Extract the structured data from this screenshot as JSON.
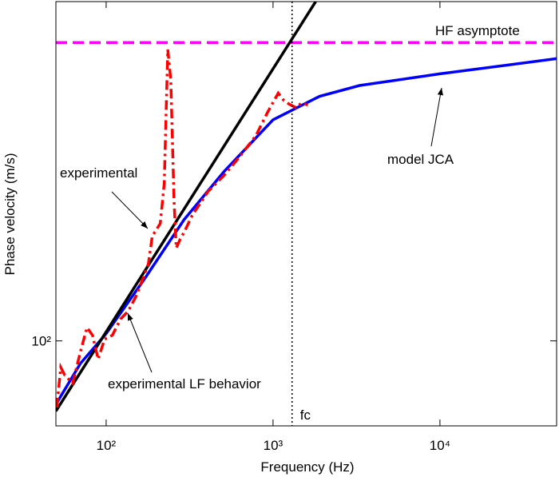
{
  "chart_data": {
    "type": "line",
    "xlabel": "Frequency (Hz)",
    "ylabel": "Phase velocity (m/s)",
    "xscale": "log",
    "yscale": "log",
    "xlim": [
      50,
      50000
    ],
    "ylim": [
      69,
      440
    ],
    "xticks": [
      {
        "value": 100,
        "label": "10²"
      },
      {
        "value": 1000,
        "label": "10³"
      },
      {
        "value": 10000,
        "label": "10⁴"
      }
    ],
    "yticks": [
      {
        "value": 100,
        "label": "10²"
      }
    ],
    "series": [
      {
        "name": "HF asymptote",
        "color": "#ff00ff",
        "style": "dash",
        "x": [
          50,
          50000
        ],
        "values": [
          368,
          368
        ]
      },
      {
        "name": "model JCA",
        "color": "#0000ff",
        "style": "solid",
        "x": [
          50.6,
          70.3,
          100,
          169,
          293,
          509,
          1000,
          1900,
          3300,
          10000,
          50000
        ],
        "values": [
          76.3,
          90.7,
          103.2,
          130.8,
          169.8,
          209.5,
          262.6,
          291,
          305,
          321,
          343
        ]
      },
      {
        "name": "experimental LF behavior",
        "color": "#000000",
        "style": "solid",
        "x": [
          50,
          1800
        ],
        "values": [
          73.6,
          440
        ]
      },
      {
        "name": "experimental",
        "color": "#ff0000",
        "style": "dashdot",
        "x": [
          50.6,
          53.5,
          56.5,
          63.0,
          70.3,
          76.8,
          82.9,
          89.6,
          97.8,
          109,
          122,
          136,
          152,
          179,
          189,
          211,
          223,
          234,
          244,
          255,
          263,
          278,
          294,
          328,
          408,
          509,
          634,
          789,
          931,
          1074,
          1159,
          1253,
          1368,
          1493,
          1614
        ],
        "values": [
          74.8,
          89.1,
          86.1,
          83.1,
          95.6,
          106,
          102.5,
          92.3,
          100.7,
          102.5,
          110,
          114,
          122,
          140,
          158,
          167,
          199,
          357,
          312,
          185,
          150,
          156,
          161,
          173,
          192,
          206,
          224,
          245,
          272,
          295,
          286,
          281,
          277,
          283,
          280
        ]
      }
    ],
    "vline": {
      "x": 1300,
      "label": "fc"
    },
    "annotations": [
      "HF asymptote",
      "experimental",
      "model JCA",
      "experimental LF behavior"
    ]
  }
}
